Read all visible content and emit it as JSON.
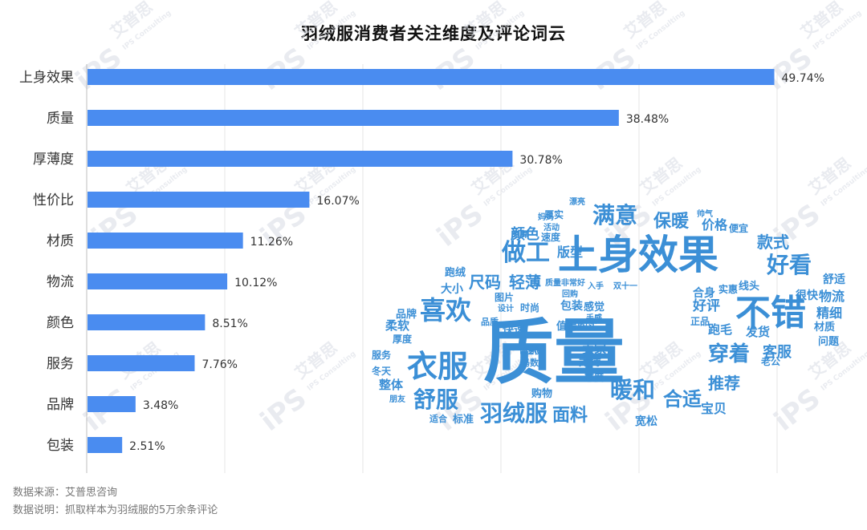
{
  "title": "羽绒服消费者关注维度及评论词云",
  "chart_data": {
    "type": "bar",
    "orientation": "horizontal",
    "categories": [
      "上身效果",
      "质量",
      "厚薄度",
      "性价比",
      "材质",
      "物流",
      "颜色",
      "服务",
      "品牌",
      "包装"
    ],
    "values": [
      49.74,
      38.48,
      30.78,
      16.07,
      11.26,
      10.12,
      8.51,
      7.76,
      3.48,
      2.51
    ],
    "value_labels": [
      "49.74%",
      "38.48%",
      "30.78%",
      "16.07%",
      "11.26%",
      "10.12%",
      "8.51%",
      "7.76%",
      "3.48%",
      "2.51%"
    ],
    "xlim": [
      0,
      50
    ],
    "grid": true,
    "bar_color": "#4a8cf0"
  },
  "wordcloud": {
    "color": "#3b8fd6",
    "words": [
      "质量",
      "上身效果",
      "不错",
      "衣服",
      "喜欢",
      "做工",
      "满意",
      "好看",
      "舒服",
      "羽绒服",
      "暖和",
      "合适",
      "穿着",
      "保暖",
      "面料",
      "推荐",
      "客服",
      "款式",
      "颜色",
      "尺码",
      "轻薄",
      "版型",
      "大小",
      "价格",
      "物流",
      "精细",
      "好评",
      "宝贝",
      "发货",
      "跑毛",
      "很快",
      "舒适",
      "材质",
      "问题",
      "快递",
      "整体",
      "柔软",
      "品牌",
      "厚度",
      "服务",
      "冬天",
      "卖家",
      "太薄",
      "购物",
      "标准",
      "包装",
      "感觉",
      "时尚",
      "设计",
      "合身",
      "实惠",
      "线头",
      "正品",
      "便宜",
      "宽松",
      "值得购买",
      "速度",
      "图片",
      "跑绒",
      "厚实",
      "老公",
      "朋友",
      "轻便",
      "商家",
      "态度",
      "码数",
      "适合",
      "品质",
      "妈妈",
      "活动",
      "划算",
      "漂亮",
      "帅气",
      "手感",
      "回购",
      "质量非常好",
      "入手",
      "双十一"
    ]
  },
  "watermark": {
    "brand": "艾普思",
    "sub": "IPS Consulting",
    "logo": "iPS"
  },
  "footer": {
    "source": "数据来源：艾普思咨询",
    "note": "数据说明：抓取样本为羽绒服的5万余条评论"
  }
}
